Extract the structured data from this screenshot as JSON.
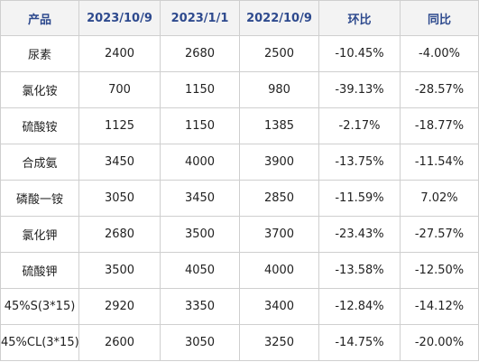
{
  "table": {
    "headers": [
      "产品",
      "2023/10/9",
      "2023/1/1",
      "2022/10/9",
      "环比",
      "同比"
    ],
    "rows": [
      [
        "尿素",
        "2400",
        "2680",
        "2500",
        "-10.45%",
        "-4.00%"
      ],
      [
        "氯化铵",
        "700",
        "1150",
        "980",
        "-39.13%",
        "-28.57%"
      ],
      [
        "硫酸铵",
        "1125",
        "1150",
        "1385",
        "-2.17%",
        "-18.77%"
      ],
      [
        "合成氨",
        "3450",
        "4000",
        "3900",
        "-13.75%",
        "-11.54%"
      ],
      [
        "磷酸一铵",
        "3050",
        "3450",
        "2850",
        "-11.59%",
        "7.02%"
      ],
      [
        "氯化钾",
        "2680",
        "3500",
        "3700",
        "-23.43%",
        "-27.57%"
      ],
      [
        "硫酸钾",
        "3500",
        "4050",
        "4000",
        "-13.58%",
        "-12.50%"
      ],
      [
        "45%S(3*15)",
        "2920",
        "3350",
        "3400",
        "-12.84%",
        "-14.12%"
      ],
      [
        "45%CL(3*15)",
        "2600",
        "3050",
        "3250",
        "-14.75%",
        "-20.00%"
      ]
    ]
  },
  "colors": {
    "header_text": "#2e4a8e",
    "header_bg": "#f3f3f3",
    "border": "#cfcfcf",
    "cell_text": "#222222"
  }
}
